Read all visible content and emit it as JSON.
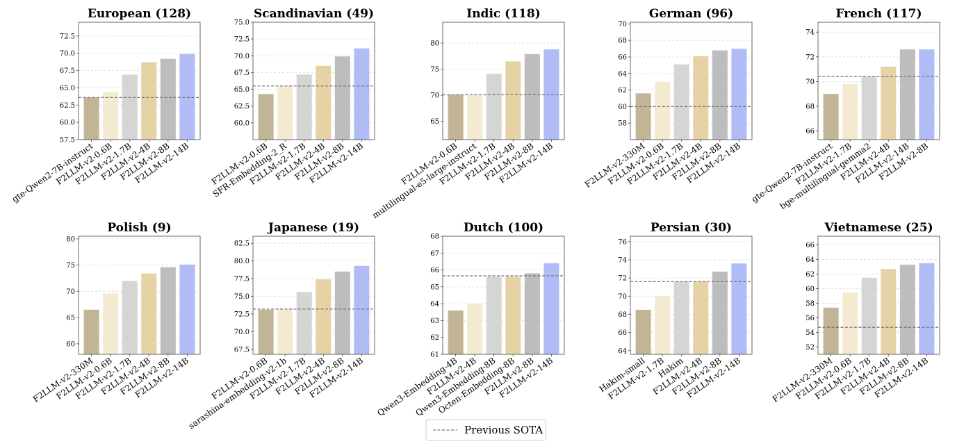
{
  "colors": {
    "bar_palette": [
      "#c2b596",
      "#f3ead1",
      "#d5d5d5",
      "#e5d3a6",
      "#bdbdbd",
      "#b1bcf7"
    ],
    "sota_line": "#777777",
    "grid": "#d9d9d9",
    "axes": "#444444"
  },
  "legend": {
    "label": "Previous SOTA",
    "placement": "bottom-center"
  },
  "chart_data": [
    {
      "type": "bar",
      "title": "European (128)",
      "categories": [
        "gte-Qwen2-7B-instruct",
        "F2LLM-v2-0.6B",
        "F2LLM-v2-1.7B",
        "F2LLM-v2-4B",
        "F2LLM-v2-8B",
        "F2LLM-v2-14B"
      ],
      "values": [
        63.6,
        64.4,
        66.9,
        68.7,
        69.2,
        69.9
      ],
      "color_idx": [
        0,
        1,
        2,
        3,
        4,
        5
      ],
      "sota": 63.6,
      "ylim": [
        57.5,
        74.5
      ],
      "yticks": [
        57.5,
        60.0,
        62.5,
        65.0,
        67.5,
        70.0,
        72.5
      ],
      "ytick_labels": [
        "57.5",
        "60.0",
        "62.5",
        "65.0",
        "67.5",
        "70.0",
        "72.5"
      ],
      "grid": true
    },
    {
      "type": "bar",
      "title": "Scandinavian (49)",
      "categories": [
        "F2LLM-v2-0.6B",
        "SFR-Embedding-2_R",
        "F2LLM-v2-1.7B",
        "F2LLM-v2-4B",
        "F2LLM-v2-8B",
        "F2LLM-v2-14B"
      ],
      "values": [
        64.3,
        65.5,
        67.2,
        68.5,
        69.9,
        71.1
      ],
      "color_idx": [
        0,
        1,
        2,
        3,
        4,
        5
      ],
      "sota": 65.5,
      "ylim": [
        57.5,
        75.0
      ],
      "yticks": [
        60.0,
        62.5,
        65.0,
        67.5,
        70.0,
        72.5,
        75.0
      ],
      "ytick_labels": [
        "60.0",
        "62.5",
        "65.0",
        "67.5",
        "70.0",
        "72.5",
        "75.0"
      ],
      "grid": true
    },
    {
      "type": "bar",
      "title": "Indic (118)",
      "categories": [
        "F2LLM-v2-0.6B",
        "multilingual-e5-large-instruct",
        "F2LLM-v2-1.7B",
        "F2LLM-v2-4B",
        "F2LLM-v2-8B",
        "F2LLM-v2-14B"
      ],
      "values": [
        70.1,
        70.1,
        74.1,
        76.5,
        77.9,
        78.8
      ],
      "color_idx": [
        0,
        1,
        2,
        3,
        4,
        5
      ],
      "sota": 70.1,
      "ylim": [
        61.5,
        84.0
      ],
      "yticks": [
        65,
        70,
        75,
        80
      ],
      "ytick_labels": [
        "65",
        "70",
        "75",
        "80"
      ],
      "grid": true
    },
    {
      "type": "bar",
      "title": "German (96)",
      "categories": [
        "F2LLM-v2-330M",
        "F2LLM-v2-0.6B",
        "F2LLM-v2-1.7B",
        "F2LLM-v2-4B",
        "F2LLM-v2-8B",
        "F2LLM-v2-14B"
      ],
      "values": [
        61.6,
        63.0,
        65.1,
        66.1,
        66.8,
        67.0
      ],
      "color_idx": [
        0,
        1,
        2,
        3,
        4,
        5
      ],
      "sota": 60.0,
      "ylim": [
        56.0,
        70.2
      ],
      "yticks": [
        58,
        60,
        62,
        64,
        66,
        68,
        70
      ],
      "ytick_labels": [
        "58",
        "60",
        "62",
        "64",
        "66",
        "68",
        "70"
      ],
      "grid": true
    },
    {
      "type": "bar",
      "title": "French (117)",
      "categories": [
        "gte-Qwen2-7B-instruct",
        "F2LLM-v2-1.7B",
        "bge-multilingual-gemma2",
        "F2LLM-v2-4B",
        "F2LLM-v2-14B",
        "F2LLM-v2-8B"
      ],
      "values": [
        69.0,
        69.8,
        70.4,
        71.2,
        72.6,
        72.6
      ],
      "color_idx": [
        0,
        1,
        2,
        3,
        4,
        5
      ],
      "sota": 70.4,
      "ylim": [
        65.3,
        74.8
      ],
      "yticks": [
        66,
        68,
        70,
        72,
        74
      ],
      "ytick_labels": [
        "66",
        "68",
        "70",
        "72",
        "74"
      ],
      "grid": true
    },
    {
      "type": "bar",
      "title": "Polish (9)",
      "categories": [
        "F2LLM-v2-330M",
        "F2LLM-v2-0.6B",
        "F2LLM-v2-1.7B",
        "F2LLM-v2-4B",
        "F2LLM-v2-8B",
        "F2LLM-v2-14B"
      ],
      "values": [
        66.5,
        69.6,
        72.0,
        73.4,
        74.6,
        75.1
      ],
      "color_idx": [
        0,
        1,
        2,
        3,
        4,
        5
      ],
      "sota": null,
      "ylim": [
        58.0,
        80.5
      ],
      "yticks": [
        60,
        65,
        70,
        75,
        80
      ],
      "ytick_labels": [
        "60",
        "65",
        "70",
        "75",
        "80"
      ],
      "grid": true
    },
    {
      "type": "bar",
      "title": "Japanese (19)",
      "categories": [
        "F2LLM-v2-0.6B",
        "sarashina-embedding-v2-1b",
        "F2LLM-v2-1.7B",
        "F2LLM-v2-4B",
        "F2LLM-v2-8B",
        "F2LLM-v2-14B"
      ],
      "values": [
        73.1,
        73.2,
        75.6,
        77.4,
        78.5,
        79.3
      ],
      "color_idx": [
        0,
        1,
        2,
        3,
        4,
        5
      ],
      "sota": 73.2,
      "ylim": [
        66.8,
        83.5
      ],
      "yticks": [
        67.5,
        70.0,
        72.5,
        75.0,
        77.5,
        80.0,
        82.5
      ],
      "ytick_labels": [
        "67.5",
        "70.0",
        "72.5",
        "75.0",
        "77.5",
        "80.0",
        "82.5"
      ],
      "grid": true
    },
    {
      "type": "bar",
      "title": "Dutch (100)",
      "categories": [
        "Qwen3-Embedding-4B",
        "F2LLM-v2-4B",
        "Qwen3-Embedding-8B",
        "Octen-Embedding-8B",
        "F2LLM-v2-8B",
        "F2LLM-v2-14B"
      ],
      "values": [
        63.6,
        64.0,
        65.6,
        65.6,
        65.8,
        66.4
      ],
      "color_idx": [
        0,
        1,
        2,
        3,
        4,
        5
      ],
      "sota": 65.65,
      "ylim": [
        61.0,
        68.0
      ],
      "yticks": [
        61,
        62,
        63,
        64,
        65,
        66,
        67,
        68
      ],
      "ytick_labels": [
        "61",
        "62",
        "63",
        "64",
        "65",
        "66",
        "67",
        "68"
      ],
      "grid": true
    },
    {
      "type": "bar",
      "title": "Persian (30)",
      "categories": [
        "Hakim-small",
        "F2LLM-v2-1.7B",
        "Hakim",
        "F2LLM-v2-4B",
        "F2LLM-v2-8B",
        "F2LLM-v2-14B"
      ],
      "values": [
        68.5,
        70.0,
        71.6,
        71.6,
        72.7,
        73.6
      ],
      "color_idx": [
        0,
        1,
        2,
        3,
        4,
        5
      ],
      "sota": 71.6,
      "ylim": [
        63.6,
        76.6
      ],
      "yticks": [
        64,
        66,
        68,
        70,
        72,
        74,
        76
      ],
      "ytick_labels": [
        "64",
        "66",
        "68",
        "70",
        "72",
        "74",
        "76"
      ],
      "grid": true
    },
    {
      "type": "bar",
      "title": "Vietnamese (25)",
      "categories": [
        "F2LLM-v2-330M",
        "F2LLM-v2-0.6B",
        "F2LLM-v2-1.7B",
        "F2LLM-v2-4B",
        "F2LLM-v2-8B",
        "F2LLM-v2-14B"
      ],
      "values": [
        57.4,
        59.5,
        61.5,
        62.7,
        63.3,
        63.5
      ],
      "color_idx": [
        0,
        1,
        2,
        3,
        4,
        5
      ],
      "sota": 54.7,
      "ylim": [
        51.0,
        67.2
      ],
      "yticks": [
        52,
        54,
        56,
        58,
        60,
        62,
        64,
        66
      ],
      "ytick_labels": [
        "52",
        "54",
        "56",
        "58",
        "60",
        "62",
        "64",
        "66"
      ],
      "grid": true
    }
  ]
}
